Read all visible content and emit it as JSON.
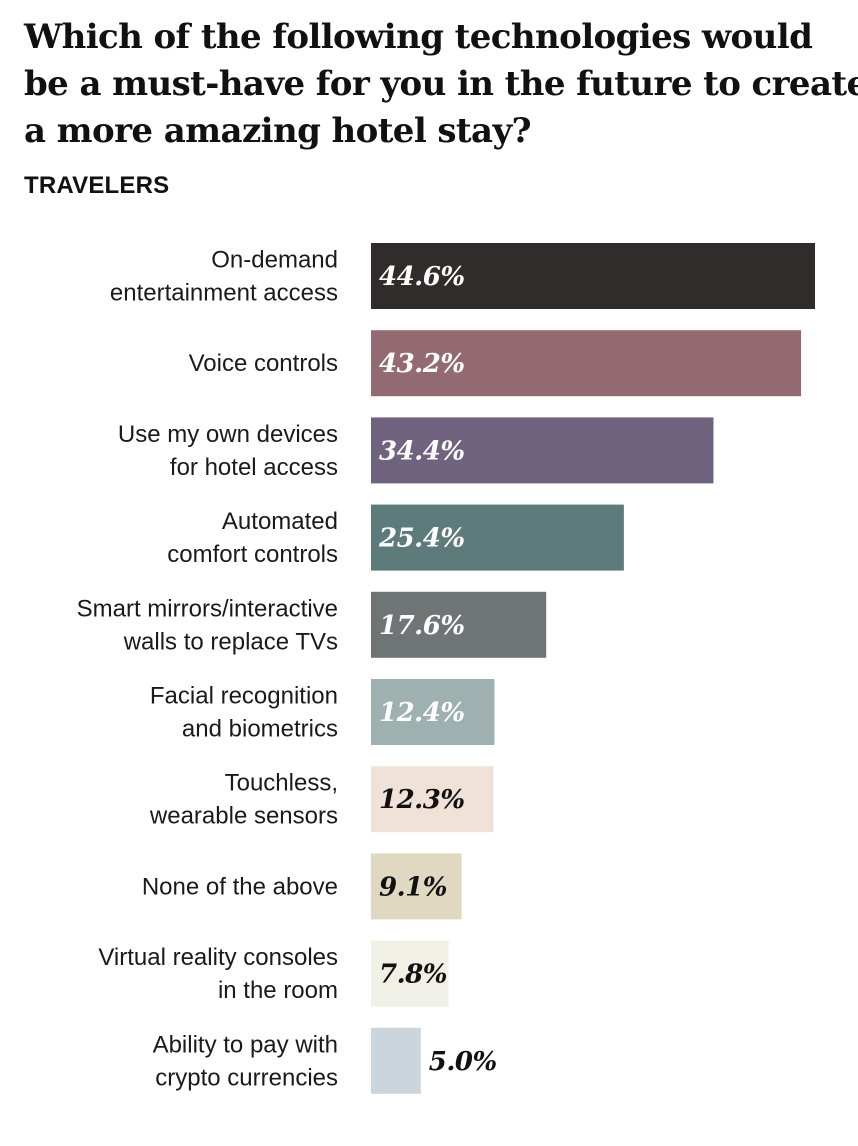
{
  "title_lines": [
    "Which of the following technologies would",
    "be a must-have for you in the future to create",
    "a more amazing hotel stay?"
  ],
  "subtitle": "TRAVELERS",
  "colors": {
    "on_demand": "#2f2c2b",
    "voice": "#946a72",
    "own_devices": "#706380",
    "automated": "#5d7b7a",
    "smart_mirrors": "#6e7574",
    "facial": "#9eb0b0",
    "touchless": "#f0e2d6",
    "none": "#e0d8c1",
    "vr": "#f1f0e6",
    "crypto": "#cbd5dd"
  },
  "chart_data": {
    "type": "bar",
    "orientation": "horizontal",
    "title": "Which of the following technologies would be a must-have for you in the future to create a more amazing hotel stay?",
    "subtitle": "TRAVELERS",
    "unit": "%",
    "categories": [
      [
        "On-demand",
        "entertainment access"
      ],
      [
        "Voice controls"
      ],
      [
        "Use my own devices",
        "for hotel access"
      ],
      [
        "Automated",
        "comfort controls"
      ],
      [
        "Smart mirrors/interactive",
        "walls to replace TVs"
      ],
      [
        "Facial recognition",
        "and biometrics"
      ],
      [
        "Touchless,",
        "wearable sensors"
      ],
      [
        "None of the above"
      ],
      [
        "Virtual reality consoles",
        "in the room"
      ],
      [
        "Ability to pay with",
        "crypto currencies"
      ]
    ],
    "values": [
      44.6,
      43.2,
      34.4,
      25.4,
      17.6,
      12.4,
      12.3,
      9.1,
      7.8,
      5.0
    ],
    "value_labels": [
      "44.6%",
      "43.2%",
      "34.4%",
      "25.4%",
      "17.6%",
      "12.4%",
      "12.3%",
      "9.1%",
      "7.8%",
      "5.0%"
    ],
    "bar_colors": [
      "#2f2c2b",
      "#946a72",
      "#706380",
      "#5d7b7a",
      "#6e7574",
      "#9eb0b0",
      "#f0e2d6",
      "#e0d8c1",
      "#f1f0e6",
      "#cbd5dd"
    ],
    "label_colors": [
      "#ffffff",
      "#ffffff",
      "#ffffff",
      "#ffffff",
      "#ffffff",
      "#ffffff",
      "#111111",
      "#111111",
      "#111111",
      "#111111"
    ],
    "label_outside": [
      false,
      false,
      false,
      false,
      false,
      false,
      false,
      false,
      false,
      true
    ],
    "xlim": [
      0,
      44.6
    ],
    "grid": false,
    "legend": "none"
  }
}
